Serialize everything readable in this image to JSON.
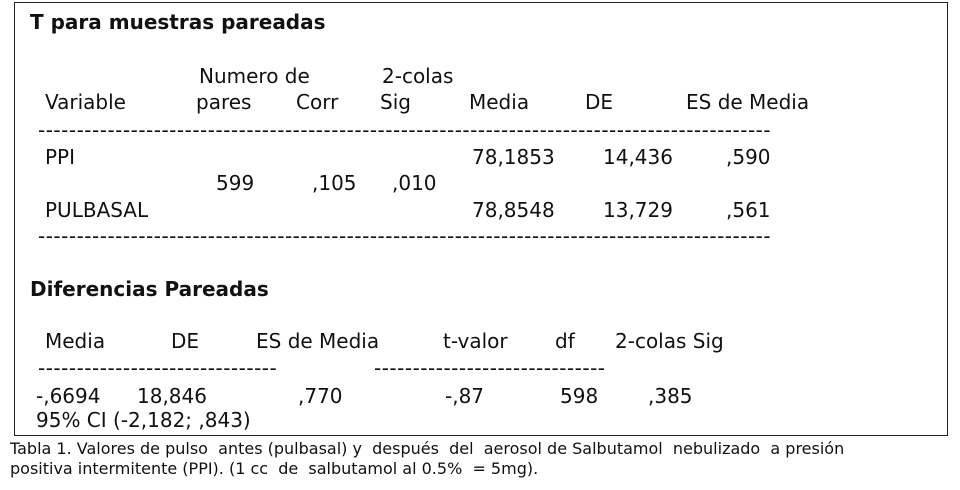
{
  "table1": {
    "title": "T para muestras pareadas",
    "headers": {
      "variable": "Variable",
      "numero_top": "Numero de",
      "numero_bottom": "pares",
      "corr": "Corr",
      "sig_top": "2-colas",
      "sig_bottom": "Sig",
      "media": "Media",
      "de": "DE",
      "es": "ES de Media"
    },
    "rows": [
      {
        "variable": "PPI",
        "media": "78,1853",
        "de": "14,436",
        "es": ",590"
      },
      {
        "variable": "PULBASAL",
        "media": "78,8548",
        "de": "13,729",
        "es": ",561"
      }
    ],
    "pairs": "599",
    "corr": ",105",
    "sig": ",010"
  },
  "table2": {
    "title": "Diferencias Pareadas",
    "headers": {
      "media": "Media",
      "de": "DE",
      "es": "ES de Media",
      "t": "t-valor",
      "df": "df",
      "sig": "2-colas Sig"
    },
    "values": {
      "media": "-,6694",
      "de": "18,846",
      "es": ",770",
      "t": "-,87",
      "df": "598",
      "sig": ",385"
    },
    "ci": "95% CI (-2,182; ,843)"
  },
  "caption": {
    "line1": "Tabla 1. Valores de pulso  antes (pulbasal) y  después  del  aerosol de Salbutamol  nebulizado  a presión",
    "line2": "positiva intermitente (PPI). (1 cc  de  salbutamol al 0.5%  = 5mg)."
  },
  "separators": {
    "line": "---------------------------------------------------------------------------------------------------------------------",
    "left": "-------------------------------",
    "right": "------------------------------"
  }
}
